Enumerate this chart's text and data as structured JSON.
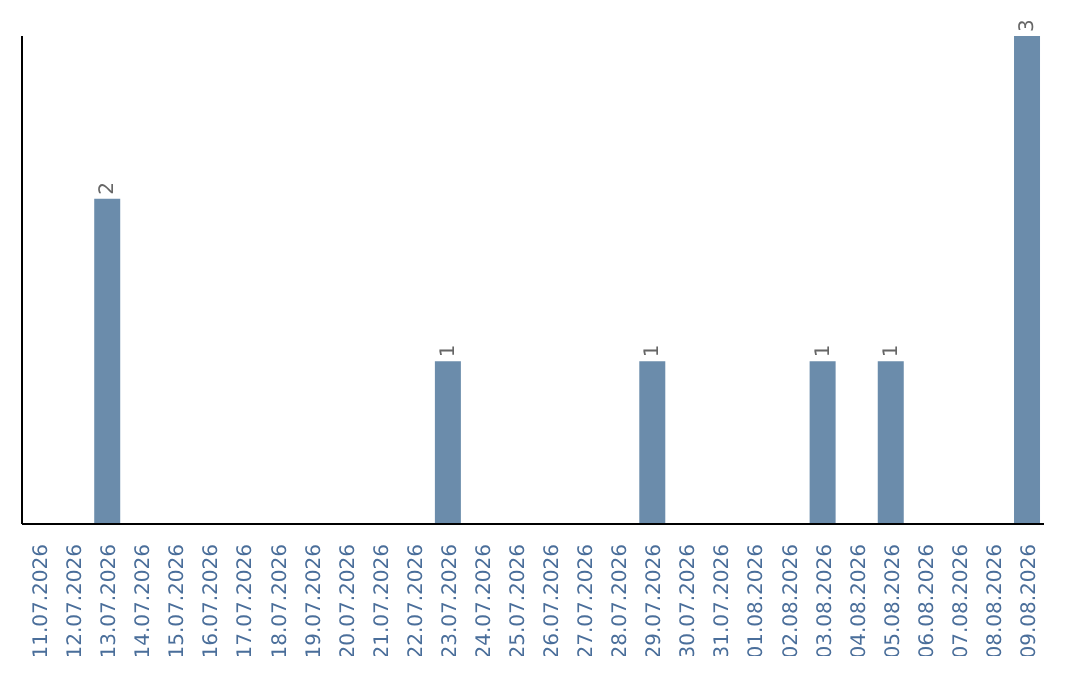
{
  "chart_data": {
    "type": "bar",
    "categories": [
      "11.07.2026",
      "12.07.2026",
      "13.07.2026",
      "14.07.2026",
      "15.07.2026",
      "16.07.2026",
      "17.07.2026",
      "18.07.2026",
      "19.07.2026",
      "20.07.2026",
      "21.07.2026",
      "22.07.2026",
      "23.07.2026",
      "24.07.2026",
      "25.07.2026",
      "26.07.2026",
      "27.07.2026",
      "28.07.2026",
      "29.07.2026",
      "30.07.2026",
      "31.07.2026",
      "01.08.2026",
      "02.08.2026",
      "03.08.2026",
      "04.08.2026",
      "05.08.2026",
      "06.08.2026",
      "07.08.2026",
      "08.08.2026",
      "09.08.2026"
    ],
    "values": [
      0,
      0,
      2,
      0,
      0,
      0,
      0,
      0,
      0,
      0,
      0,
      0,
      1,
      0,
      0,
      0,
      0,
      0,
      1,
      0,
      0,
      0,
      0,
      1,
      0,
      1,
      0,
      0,
      0,
      3
    ],
    "value_labels": [
      null,
      null,
      "2",
      null,
      null,
      null,
      null,
      null,
      null,
      null,
      null,
      null,
      "1",
      null,
      null,
      null,
      null,
      null,
      "1",
      null,
      null,
      null,
      null,
      "1",
      null,
      "1",
      null,
      null,
      null,
      "3"
    ],
    "color": "#6b8cab",
    "tick_labels": "x",
    "grid": false,
    "legend": false
  }
}
